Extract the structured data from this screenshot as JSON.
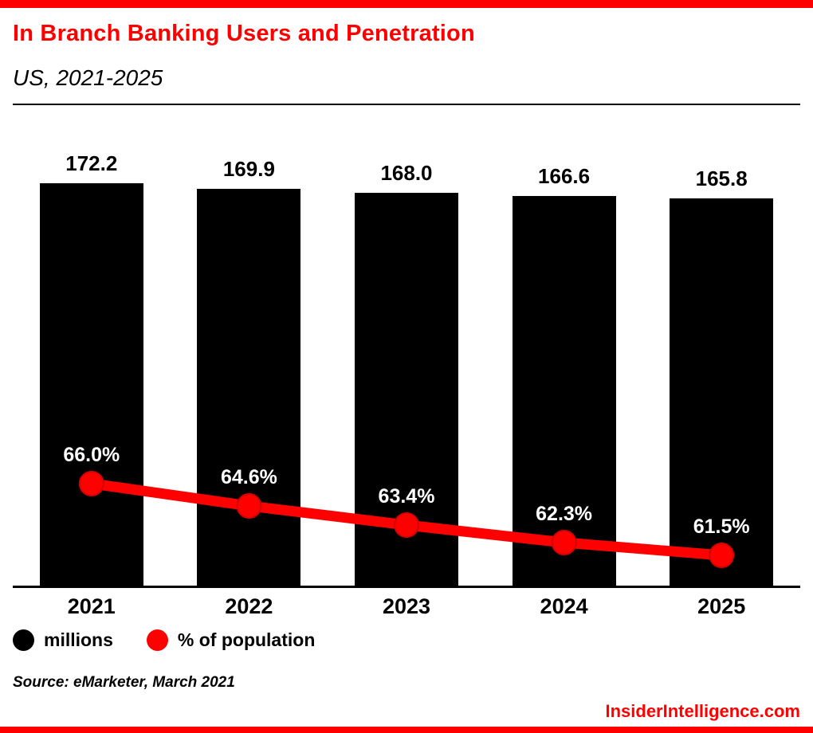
{
  "header": {
    "title": "In Branch Banking Users and Penetration",
    "subtitle": "US, 2021-2025"
  },
  "chart_data": {
    "type": "bar",
    "title": "In Branch Banking Users and Penetration",
    "subtitle": "US, 2021-2025",
    "categories": [
      "2021",
      "2022",
      "2023",
      "2024",
      "2025"
    ],
    "series": [
      {
        "name": "millions",
        "type": "bar",
        "color": "#000000",
        "values": [
          172.2,
          169.9,
          168.0,
          166.6,
          165.8
        ],
        "labels": [
          "172.2",
          "169.9",
          "168.0",
          "166.6",
          "165.8"
        ]
      },
      {
        "name": "% of population",
        "type": "line",
        "color": "#ff0000",
        "marker_edge_color": "#d40000",
        "values": [
          66.0,
          64.6,
          63.4,
          62.3,
          61.5
        ],
        "labels": [
          "66.0%",
          "64.6%",
          "63.4%",
          "62.3%",
          "61.5%"
        ]
      }
    ],
    "ylim": [
      0,
      180
    ],
    "grid": false,
    "legend_position": "bottom"
  },
  "legend": {
    "items": [
      {
        "label": "millions",
        "color": "#000000",
        "icon": "millions-swatch-icon"
      },
      {
        "label": "% of population",
        "color": "#ff0000",
        "icon": "population-swatch-icon"
      }
    ]
  },
  "source": "Source: eMarketer, March 2021",
  "footer": {
    "brand": "InsiderIntelligence.com"
  },
  "colors": {
    "accent": "#ff0000",
    "bar": "#000000",
    "line": "#ff0000",
    "text": "#000000",
    "background": "#ffffff"
  }
}
